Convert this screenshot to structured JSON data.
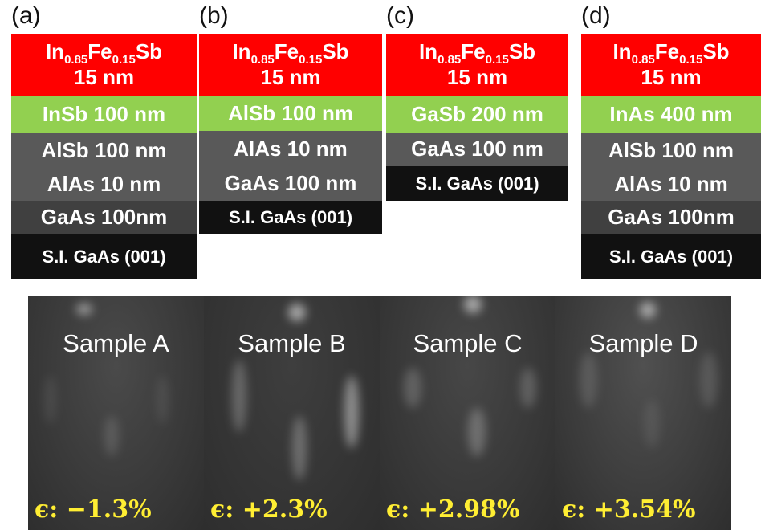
{
  "panels": [
    {
      "label": "(a)",
      "layers": [
        {
          "formula": [
            "In",
            "0.85",
            "Fe",
            "0.15",
            "Sb"
          ],
          "text": "15 nm",
          "color": "#ff0000",
          "height": 78
        },
        {
          "text": "InSb 100 nm",
          "color": "#92d050",
          "height": 45
        },
        {
          "text": "AlSb 100 nm",
          "color": "#595959",
          "height": 45
        },
        {
          "text": "AlAs 10 nm",
          "color": "#595959",
          "height": 40
        },
        {
          "text": "GaAs 100nm",
          "color": "#404040",
          "height": 42
        },
        {
          "text": "S.I. GaAs (001)",
          "color": "#111111",
          "height": 56
        }
      ]
    },
    {
      "label": "(b)",
      "layers": [
        {
          "formula": [
            "In",
            "0.85",
            "Fe",
            "0.15",
            "Sb"
          ],
          "text": "15 nm",
          "color": "#ff0000",
          "height": 78
        },
        {
          "text": "AlSb 100 nm",
          "color": "#92d050",
          "height": 43
        },
        {
          "text": "AlAs 10 nm",
          "color": "#595959",
          "height": 45
        },
        {
          "text": "GaAs 100 nm",
          "color": "#595959",
          "height": 42
        },
        {
          "text": "S.I. GaAs (001)",
          "color": "#111111",
          "height": 42
        }
      ]
    },
    {
      "label": "(c)",
      "layers": [
        {
          "formula": [
            "In",
            "0.85",
            "Fe",
            "0.15",
            "Sb"
          ],
          "text": "15 nm",
          "color": "#ff0000",
          "height": 78
        },
        {
          "text": "GaSb 200 nm",
          "color": "#92d050",
          "height": 45
        },
        {
          "text": "GaAs 100 nm",
          "color": "#595959",
          "height": 42
        },
        {
          "text": "S.I. GaAs (001)",
          "color": "#111111",
          "height": 43
        }
      ]
    },
    {
      "label": "(d)",
      "layers": [
        {
          "formula": [
            "In",
            "0.85",
            "Fe",
            "0.15",
            "Sb"
          ],
          "text": "15 nm",
          "color": "#ff0000",
          "height": 78
        },
        {
          "text": "InAs 400 nm",
          "color": "#92d050",
          "height": 45
        },
        {
          "text": "AlSb 100 nm",
          "color": "#595959",
          "height": 45
        },
        {
          "text": "AlAs 10 nm",
          "color": "#595959",
          "height": 40
        },
        {
          "text": "GaAs 100nm",
          "color": "#404040",
          "height": 42
        },
        {
          "text": "S.I. GaAs (001)",
          "color": "#111111",
          "height": 56
        }
      ]
    }
  ],
  "images": [
    {
      "name": "Sample A",
      "symbol": "ϵ:",
      "strain": "−1.3%"
    },
    {
      "name": "Sample B",
      "symbol": "ϵ:",
      "strain": "+2.3%"
    },
    {
      "name": "Sample C",
      "symbol": "ϵ:",
      "strain": "+2.98%"
    },
    {
      "name": "Sample D",
      "symbol": "ϵ:",
      "strain": "+3.54%"
    }
  ]
}
